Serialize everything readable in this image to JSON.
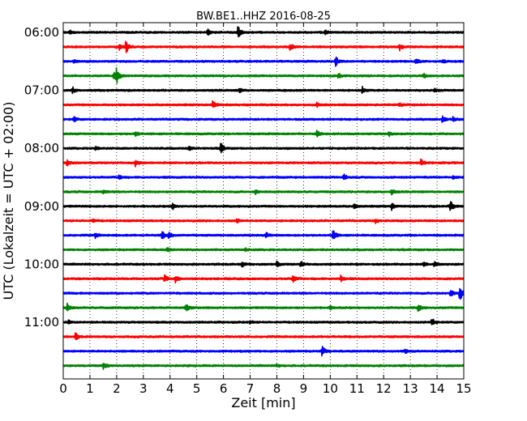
{
  "chart_data": {
    "type": "line",
    "title": "BW.BE1..HHZ 2016-08-25",
    "xlabel": "Zeit  [min]",
    "ylabel": "UTC (Lokalzeit = UTC + 02:00)",
    "xlim": [
      0,
      15
    ],
    "x_ticks": [
      "0",
      "1",
      "2",
      "3",
      "4",
      "5",
      "6",
      "7",
      "8",
      "9",
      "10",
      "11",
      "12",
      "13",
      "14",
      "15"
    ],
    "y_tick_labels": [
      "06:00",
      "07:00",
      "08:00",
      "09:00",
      "10:00",
      "11:00"
    ],
    "grid": "x-dotted",
    "colors": [
      "#000000",
      "#ff0000",
      "#0000ff",
      "#008000"
    ],
    "series": [
      {
        "start": "06:00",
        "color": "#000000",
        "events": [
          [
            0.25,
            0.25
          ],
          [
            5.4,
            0.45
          ],
          [
            6.55,
            0.85
          ],
          [
            9.8,
            0.3
          ]
        ]
      },
      {
        "start": "06:15",
        "color": "#ff0000",
        "events": [
          [
            2.1,
            0.35
          ],
          [
            2.35,
            0.9
          ],
          [
            8.5,
            0.5
          ],
          [
            12.6,
            0.4
          ]
        ]
      },
      {
        "start": "06:30",
        "color": "#0000ff",
        "events": [
          [
            0.4,
            0.3
          ],
          [
            10.2,
            0.75
          ],
          [
            13.2,
            0.35
          ],
          [
            14.2,
            0.25
          ]
        ]
      },
      {
        "start": "06:45",
        "color": "#008000",
        "events": [
          [
            1.9,
            0.55
          ],
          [
            2.0,
            1.0
          ],
          [
            10.3,
            0.4
          ],
          [
            13.5,
            0.3
          ]
        ]
      },
      {
        "start": "07:00",
        "color": "#000000",
        "events": [
          [
            0.35,
            0.4
          ],
          [
            6.6,
            0.3
          ],
          [
            11.2,
            0.5
          ],
          [
            13.9,
            0.3
          ]
        ]
      },
      {
        "start": "07:15",
        "color": "#ff0000",
        "events": [
          [
            5.6,
            0.55
          ],
          [
            9.5,
            0.25
          ],
          [
            12.6,
            0.25
          ]
        ]
      },
      {
        "start": "07:30",
        "color": "#0000ff",
        "events": [
          [
            0.4,
            0.35
          ],
          [
            14.2,
            0.45
          ],
          [
            14.6,
            0.3
          ]
        ]
      },
      {
        "start": "07:45",
        "color": "#008000",
        "events": [
          [
            2.7,
            0.45
          ],
          [
            9.5,
            0.4
          ],
          [
            12.2,
            0.3
          ]
        ]
      },
      {
        "start": "08:00",
        "color": "#000000",
        "events": [
          [
            1.2,
            0.25
          ],
          [
            4.7,
            0.4
          ],
          [
            5.9,
            0.8
          ]
        ]
      },
      {
        "start": "08:15",
        "color": "#ff0000",
        "events": [
          [
            0.15,
            0.5
          ],
          [
            2.7,
            0.45
          ],
          [
            13.4,
            0.45
          ]
        ]
      },
      {
        "start": "08:30",
        "color": "#0000ff",
        "events": [
          [
            2.1,
            0.35
          ],
          [
            10.5,
            0.45
          ],
          [
            14.6,
            0.25
          ]
        ]
      },
      {
        "start": "08:45",
        "color": "#008000",
        "events": [
          [
            1.5,
            0.25
          ],
          [
            7.2,
            0.3
          ],
          [
            12.3,
            0.35
          ]
        ]
      },
      {
        "start": "09:00",
        "color": "#000000",
        "events": [
          [
            4.1,
            0.45
          ],
          [
            10.9,
            0.35
          ],
          [
            12.3,
            0.5
          ],
          [
            14.5,
            0.8
          ]
        ]
      },
      {
        "start": "09:15",
        "color": "#ff0000",
        "events": [
          [
            1.1,
            0.25
          ],
          [
            6.5,
            0.25
          ],
          [
            11.7,
            0.3
          ]
        ]
      },
      {
        "start": "09:30",
        "color": "#0000ff",
        "events": [
          [
            1.2,
            0.35
          ],
          [
            3.7,
            0.6
          ],
          [
            3.95,
            0.5
          ],
          [
            7.6,
            0.4
          ],
          [
            10.1,
            0.85
          ]
        ]
      },
      {
        "start": "09:45",
        "color": "#008000",
        "events": [
          [
            3.9,
            0.25
          ],
          [
            6.8,
            0.2
          ]
        ]
      },
      {
        "start": "10:00",
        "color": "#000000",
        "events": [
          [
            6.7,
            0.45
          ],
          [
            8.0,
            0.35
          ],
          [
            8.9,
            0.45
          ],
          [
            13.5,
            0.35
          ],
          [
            13.9,
            0.35
          ]
        ]
      },
      {
        "start": "10:15",
        "color": "#ff0000",
        "events": [
          [
            3.8,
            0.6
          ],
          [
            4.2,
            0.45
          ],
          [
            8.6,
            0.55
          ],
          [
            10.4,
            0.45
          ]
        ]
      },
      {
        "start": "10:30",
        "color": "#0000ff",
        "events": [
          [
            14.5,
            0.5
          ],
          [
            14.85,
            1.1
          ]
        ]
      },
      {
        "start": "10:45",
        "color": "#008000",
        "events": [
          [
            0.15,
            0.6
          ],
          [
            4.6,
            0.5
          ],
          [
            10.0,
            0.25
          ],
          [
            13.3,
            0.55
          ]
        ]
      },
      {
        "start": "11:00",
        "color": "#000000",
        "events": [
          [
            0.2,
            0.3
          ],
          [
            7.0,
            0.2
          ],
          [
            13.8,
            0.6
          ]
        ]
      },
      {
        "start": "11:15",
        "color": "#ff0000",
        "events": [
          [
            0.45,
            0.55
          ]
        ]
      },
      {
        "start": "11:30",
        "color": "#0000ff",
        "events": [
          [
            9.7,
            0.7
          ],
          [
            12.8,
            0.35
          ]
        ]
      },
      {
        "start": "11:45",
        "color": "#008000",
        "events": [
          [
            1.5,
            0.55
          ],
          [
            8.0,
            0.2
          ]
        ]
      }
    ]
  }
}
